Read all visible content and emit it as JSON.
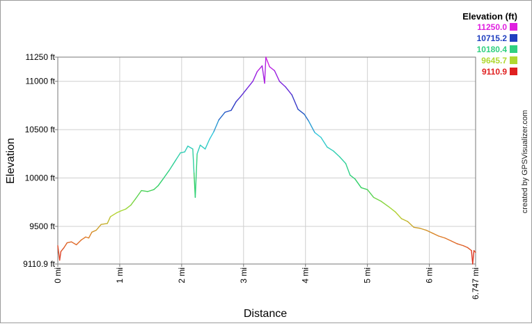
{
  "chart_data": {
    "type": "line",
    "xlabel": "Distance",
    "ylabel": "Elevation",
    "xlim": [
      0,
      6.747
    ],
    "ylim": [
      9110.9,
      11250.0
    ],
    "grid": true,
    "x_ticks": [
      {
        "value": 0,
        "label": "0 mi"
      },
      {
        "value": 1,
        "label": "1 mi"
      },
      {
        "value": 2,
        "label": "2 mi"
      },
      {
        "value": 3,
        "label": "3 mi"
      },
      {
        "value": 4,
        "label": "4 mi"
      },
      {
        "value": 5,
        "label": "5 mi"
      },
      {
        "value": 6,
        "label": "6 mi"
      },
      {
        "value": 6.747,
        "label": "6.747 mi"
      }
    ],
    "y_ticks": [
      {
        "value": 9110.9,
        "label": "9110.9 ft"
      },
      {
        "value": 9500,
        "label": "9500 ft"
      },
      {
        "value": 10000,
        "label": "10000 ft"
      },
      {
        "value": 10500,
        "label": "10500 ft"
      },
      {
        "value": 11000,
        "label": "11000 ft"
      },
      {
        "value": 11250,
        "label": "11250 ft"
      }
    ],
    "legend": {
      "title": "Elevation (ft)",
      "placement": "top-right",
      "entries": [
        {
          "label": "11250.0",
          "color": "#e020e0"
        },
        {
          "label": "10715.2",
          "color": "#2040c0"
        },
        {
          "label": "10180.4",
          "color": "#30d080"
        },
        {
          "label": "9645.7",
          "color": "#b0d830"
        },
        {
          "label": "9110.9",
          "color": "#e02020"
        }
      ]
    },
    "series": [
      {
        "values": [
          {
            "x": 0.0,
            "y": 9300
          },
          {
            "x": 0.03,
            "y": 9150
          },
          {
            "x": 0.05,
            "y": 9240
          },
          {
            "x": 0.1,
            "y": 9280
          },
          {
            "x": 0.15,
            "y": 9330
          },
          {
            "x": 0.22,
            "y": 9340
          },
          {
            "x": 0.3,
            "y": 9310
          },
          {
            "x": 0.38,
            "y": 9360
          },
          {
            "x": 0.45,
            "y": 9390
          },
          {
            "x": 0.5,
            "y": 9380
          },
          {
            "x": 0.55,
            "y": 9440
          },
          {
            "x": 0.62,
            "y": 9460
          },
          {
            "x": 0.7,
            "y": 9520
          },
          {
            "x": 0.8,
            "y": 9530
          },
          {
            "x": 0.85,
            "y": 9600
          },
          {
            "x": 0.95,
            "y": 9640
          },
          {
            "x": 1.02,
            "y": 9660
          },
          {
            "x": 1.1,
            "y": 9680
          },
          {
            "x": 1.18,
            "y": 9720
          },
          {
            "x": 1.25,
            "y": 9780
          },
          {
            "x": 1.35,
            "y": 9870
          },
          {
            "x": 1.45,
            "y": 9860
          },
          {
            "x": 1.55,
            "y": 9880
          },
          {
            "x": 1.62,
            "y": 9920
          },
          {
            "x": 1.7,
            "y": 9990
          },
          {
            "x": 1.8,
            "y": 10080
          },
          {
            "x": 1.9,
            "y": 10180
          },
          {
            "x": 1.98,
            "y": 10260
          },
          {
            "x": 2.05,
            "y": 10270
          },
          {
            "x": 2.1,
            "y": 10330
          },
          {
            "x": 2.18,
            "y": 10300
          },
          {
            "x": 2.2,
            "y": 10050
          },
          {
            "x": 2.22,
            "y": 9800
          },
          {
            "x": 2.25,
            "y": 10250
          },
          {
            "x": 2.3,
            "y": 10340
          },
          {
            "x": 2.38,
            "y": 10300
          },
          {
            "x": 2.45,
            "y": 10400
          },
          {
            "x": 2.52,
            "y": 10480
          },
          {
            "x": 2.6,
            "y": 10600
          },
          {
            "x": 2.7,
            "y": 10680
          },
          {
            "x": 2.8,
            "y": 10700
          },
          {
            "x": 2.88,
            "y": 10790
          },
          {
            "x": 2.95,
            "y": 10840
          },
          {
            "x": 3.05,
            "y": 10920
          },
          {
            "x": 3.15,
            "y": 11000
          },
          {
            "x": 3.22,
            "y": 11100
          },
          {
            "x": 3.3,
            "y": 11160
          },
          {
            "x": 3.34,
            "y": 10980
          },
          {
            "x": 3.36,
            "y": 11250
          },
          {
            "x": 3.42,
            "y": 11150
          },
          {
            "x": 3.5,
            "y": 11110
          },
          {
            "x": 3.58,
            "y": 11000
          },
          {
            "x": 3.68,
            "y": 10940
          },
          {
            "x": 3.78,
            "y": 10860
          },
          {
            "x": 3.88,
            "y": 10710
          },
          {
            "x": 3.98,
            "y": 10660
          },
          {
            "x": 4.05,
            "y": 10590
          },
          {
            "x": 4.15,
            "y": 10470
          },
          {
            "x": 4.25,
            "y": 10420
          },
          {
            "x": 4.35,
            "y": 10320
          },
          {
            "x": 4.45,
            "y": 10280
          },
          {
            "x": 4.55,
            "y": 10220
          },
          {
            "x": 4.65,
            "y": 10150
          },
          {
            "x": 4.72,
            "y": 10030
          },
          {
            "x": 4.8,
            "y": 9990
          },
          {
            "x": 4.9,
            "y": 9900
          },
          {
            "x": 5.0,
            "y": 9880
          },
          {
            "x": 5.1,
            "y": 9800
          },
          {
            "x": 5.22,
            "y": 9760
          },
          {
            "x": 5.35,
            "y": 9700
          },
          {
            "x": 5.45,
            "y": 9650
          },
          {
            "x": 5.55,
            "y": 9580
          },
          {
            "x": 5.65,
            "y": 9550
          },
          {
            "x": 5.75,
            "y": 9490
          },
          {
            "x": 5.85,
            "y": 9480
          },
          {
            "x": 5.95,
            "y": 9460
          },
          {
            "x": 6.05,
            "y": 9430
          },
          {
            "x": 6.15,
            "y": 9400
          },
          {
            "x": 6.25,
            "y": 9380
          },
          {
            "x": 6.35,
            "y": 9350
          },
          {
            "x": 6.45,
            "y": 9320
          },
          {
            "x": 6.55,
            "y": 9300
          },
          {
            "x": 6.62,
            "y": 9280
          },
          {
            "x": 6.68,
            "y": 9250
          },
          {
            "x": 6.7,
            "y": 9110.9
          },
          {
            "x": 6.72,
            "y": 9250
          },
          {
            "x": 6.747,
            "y": 9230
          }
        ]
      }
    ]
  },
  "credit": "created by GPSVisualizer.com"
}
